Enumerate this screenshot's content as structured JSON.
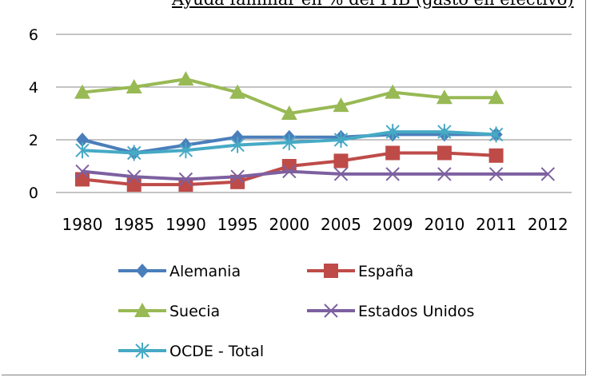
{
  "chart_data": {
    "type": "line",
    "title": "Ayuda familiar en % del PIB (gasto en efectivo)",
    "categories": [
      "1980",
      "1985",
      "1990",
      "1995",
      "2000",
      "2005",
      "2009",
      "2010",
      "2011",
      "2012"
    ],
    "ylim": [
      0,
      6
    ],
    "yticks": [
      "0",
      "2",
      "4",
      "6"
    ],
    "grid": true,
    "legend_position": "bottom",
    "series": [
      {
        "name": "Alemania",
        "color": "#4a7ebb",
        "marker": "diamond",
        "values": [
          2.0,
          1.5,
          1.8,
          2.1,
          2.1,
          2.1,
          2.2,
          2.2,
          2.2,
          null
        ]
      },
      {
        "name": "España",
        "color": "#be4b48",
        "marker": "square",
        "values": [
          0.5,
          0.3,
          0.3,
          0.4,
          1.0,
          1.2,
          1.5,
          1.5,
          1.4,
          null
        ]
      },
      {
        "name": "Suecia",
        "color": "#98b954",
        "marker": "triangle",
        "values": [
          3.8,
          4.0,
          4.3,
          3.8,
          3.0,
          3.3,
          3.8,
          3.6,
          3.6,
          null
        ]
      },
      {
        "name": "Estados Unidos",
        "color": "#7d60a0",
        "marker": "x",
        "values": [
          0.8,
          0.6,
          0.5,
          0.6,
          0.8,
          0.7,
          0.7,
          0.7,
          0.7,
          0.7
        ]
      },
      {
        "name": "OCDE - Total",
        "color": "#46aac5",
        "marker": "star",
        "values": [
          1.6,
          1.5,
          1.6,
          1.8,
          1.9,
          2.0,
          2.3,
          2.3,
          2.2,
          null
        ]
      }
    ]
  }
}
